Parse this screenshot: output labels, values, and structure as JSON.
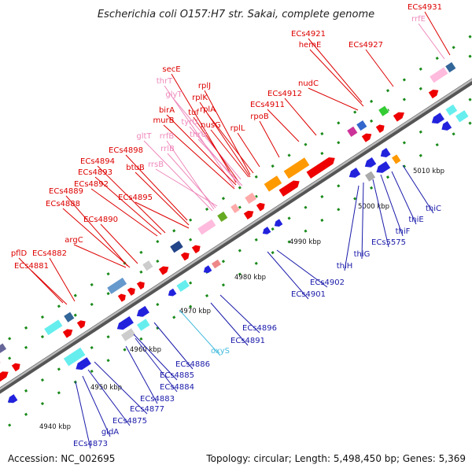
{
  "title": "Escherichia coli O157:H7 str. Sakai, complete genome",
  "footer": {
    "accession": "Accession: NC_002695",
    "summary": "Topology: circular; Length: 5,498,450 bp; Genes: 5,369"
  },
  "colors": {
    "red_label": "#dd0000",
    "pink_label": "#ee88bb",
    "blue_label": "#1a1aaa",
    "cyan_label": "#44bbdd",
    "backbone": "#888888",
    "tick_green": "#1a8a1a"
  },
  "ticks": [
    "4940 kbp",
    "4950 kbp",
    "4960 kbp",
    "4970 kbp",
    "4980 kbp",
    "4990 kbp",
    "5000 kbp",
    "5010 kbp"
  ],
  "top_labels": [
    {
      "text": "ECs4931",
      "color": "red"
    },
    {
      "text": "rrfE",
      "color": "pink"
    },
    {
      "text": "ECs4921",
      "color": "red"
    },
    {
      "text": "hemE",
      "color": "red"
    },
    {
      "text": "ECs4927",
      "color": "red"
    },
    {
      "text": "nudC",
      "color": "red"
    },
    {
      "text": "secE",
      "color": "red"
    },
    {
      "text": "thrT",
      "color": "pink"
    },
    {
      "text": "rplJ",
      "color": "red"
    },
    {
      "text": "rplK",
      "color": "red"
    },
    {
      "text": "glyT",
      "color": "pink"
    },
    {
      "text": "rplA",
      "color": "red"
    },
    {
      "text": "tuf",
      "color": "red"
    },
    {
      "text": "ECs4912",
      "color": "red"
    },
    {
      "text": "ECs4911",
      "color": "red"
    },
    {
      "text": "birA",
      "color": "red"
    },
    {
      "text": "nusG",
      "color": "red"
    },
    {
      "text": "murB",
      "color": "red"
    },
    {
      "text": "tyrU",
      "color": "pink"
    },
    {
      "text": "rpoB",
      "color": "red"
    },
    {
      "text": "rplL",
      "color": "red"
    },
    {
      "text": "thrU",
      "color": "pink"
    },
    {
      "text": "gltT",
      "color": "pink"
    },
    {
      "text": "rrfB",
      "color": "pink"
    },
    {
      "text": "rrlB",
      "color": "pink"
    },
    {
      "text": "ECs4898",
      "color": "red"
    },
    {
      "text": "ECs4894",
      "color": "red"
    },
    {
      "text": "btuB",
      "color": "red"
    },
    {
      "text": "ECs4893",
      "color": "red"
    },
    {
      "text": "rrsB",
      "color": "pink"
    },
    {
      "text": "ECs4892",
      "color": "red"
    },
    {
      "text": "ECs4895",
      "color": "red"
    },
    {
      "text": "ECs4889",
      "color": "red"
    },
    {
      "text": "ECs4888",
      "color": "red"
    },
    {
      "text": "ECs4890",
      "color": "red"
    },
    {
      "text": "argC",
      "color": "red"
    },
    {
      "text": "pflD",
      "color": "red"
    },
    {
      "text": "ECs4882",
      "color": "red"
    },
    {
      "text": "ECs4881",
      "color": "red"
    }
  ],
  "bottom_labels": [
    {
      "text": "thiC",
      "color": "blue"
    },
    {
      "text": "thiE",
      "color": "blue"
    },
    {
      "text": "thiF",
      "color": "blue"
    },
    {
      "text": "ECs5575",
      "color": "blue"
    },
    {
      "text": "thiG",
      "color": "blue"
    },
    {
      "text": "thiH",
      "color": "blue"
    },
    {
      "text": "ECs4902",
      "color": "blue"
    },
    {
      "text": "ECs4901",
      "color": "blue"
    },
    {
      "text": "ECs4896",
      "color": "blue"
    },
    {
      "text": "ECs4891",
      "color": "blue"
    },
    {
      "text": "oxyS",
      "color": "cyan"
    },
    {
      "text": "ECs4886",
      "color": "blue"
    },
    {
      "text": "ECs4885",
      "color": "blue"
    },
    {
      "text": "ECs4884",
      "color": "blue"
    },
    {
      "text": "ECs4883",
      "color": "blue"
    },
    {
      "text": "ECs4877",
      "color": "blue"
    },
    {
      "text": "ECs4875",
      "color": "blue"
    },
    {
      "text": "gldA",
      "color": "blue"
    },
    {
      "text": "ECs4873",
      "color": "blue"
    }
  ]
}
